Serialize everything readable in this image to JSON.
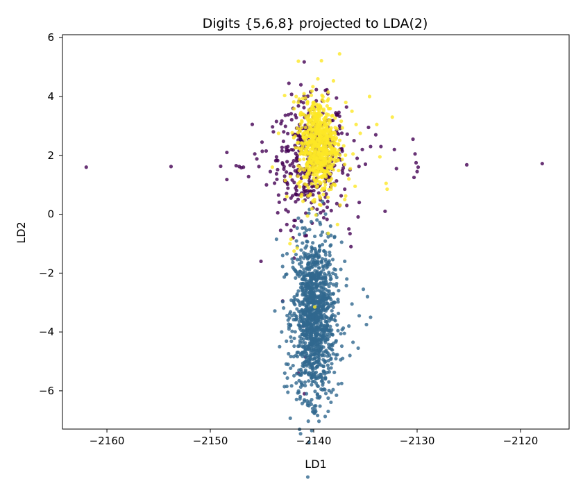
{
  "chart_data": {
    "type": "scatter",
    "title": "Digits {5,6,8} projected to LDA(2)",
    "xlabel": "LD1",
    "ylabel": "LD2",
    "xlim": [
      -2164.3,
      -2115.3
    ],
    "ylim": [
      -7.3,
      6.1
    ],
    "xticks": [
      {
        "v": -2160,
        "label": "−2160"
      },
      {
        "v": -2150,
        "label": "−2150"
      },
      {
        "v": -2140,
        "label": "−2140"
      },
      {
        "v": -2130,
        "label": "−2130"
      },
      {
        "v": -2120,
        "label": "−2120"
      }
    ],
    "yticks": [
      {
        "v": 6,
        "label": "6"
      },
      {
        "v": 4,
        "label": "4"
      },
      {
        "v": 2,
        "label": "2"
      },
      {
        "v": 0,
        "label": "0"
      },
      {
        "v": -2,
        "label": "−2"
      },
      {
        "v": -4,
        "label": "−4"
      },
      {
        "v": -6,
        "label": "−6"
      }
    ],
    "grid": false,
    "legend": "none",
    "series": [
      {
        "color": "#440154",
        "points": [
          [
            -2162.0,
            1.6
          ],
          [
            -2153.8,
            1.62
          ],
          [
            -2149.0,
            1.63
          ],
          [
            -2148.4,
            2.1
          ],
          [
            -2148.4,
            1.18
          ],
          [
            -2147.5,
            1.65
          ],
          [
            -2147.2,
            1.62
          ],
          [
            -2147.0,
            1.58
          ],
          [
            -2146.8,
            1.6
          ],
          [
            -2146.3,
            1.28
          ],
          [
            -2145.7,
            2.05
          ],
          [
            -2145.5,
            1.88
          ],
          [
            -2145.3,
            1.62
          ],
          [
            -2145.0,
            2.45
          ],
          [
            -2145.1,
            -1.6
          ],
          [
            -2144.6,
            2.15
          ],
          [
            -2144.2,
            1.45
          ],
          [
            -2143.9,
            2.8
          ],
          [
            -2143.6,
            1.95
          ],
          [
            -2143.4,
            0.65
          ],
          [
            -2143.2,
            -0.55
          ],
          [
            -2143.0,
            1.7
          ],
          [
            -2142.9,
            2.8
          ],
          [
            -2142.8,
            1.15
          ],
          [
            -2142.7,
            0.15
          ],
          [
            -2142.6,
            -0.35
          ],
          [
            -2142.5,
            2.3
          ],
          [
            -2142.6,
            2.2
          ],
          [
            -2142.4,
            4.45
          ],
          [
            -2142.2,
            -0.55
          ],
          [
            -2142.0,
            3.6
          ],
          [
            -2142.0,
            -0.8
          ],
          [
            -2143.0,
            -2.95
          ],
          [
            -2141.0,
            -3.8
          ],
          [
            -2141.5,
            -5.4
          ],
          [
            -2140.8,
            -4.85
          ],
          [
            -2140.9,
            -6.1
          ],
          [
            -2137.8,
            3.95
          ],
          [
            -2137.5,
            3.0
          ],
          [
            -2137.3,
            2.2
          ],
          [
            -2137.2,
            1.4
          ],
          [
            -2137.0,
            0.85
          ],
          [
            -2136.8,
            0.3
          ],
          [
            -2136.6,
            -0.5
          ],
          [
            -2136.4,
            -1.1
          ],
          [
            -2136.1,
            2.5
          ],
          [
            -2135.8,
            1.9
          ],
          [
            -2135.6,
            0.4
          ],
          [
            -2135.3,
            2.2
          ],
          [
            -2135.0,
            1.7
          ],
          [
            -2134.7,
            2.95
          ],
          [
            -2134.5,
            2.3
          ],
          [
            -2134.0,
            2.7
          ],
          [
            -2133.5,
            2.3
          ],
          [
            -2133.1,
            0.1
          ],
          [
            -2132.2,
            2.2
          ],
          [
            -2132.0,
            1.55
          ],
          [
            -2130.4,
            2.55
          ],
          [
            -2130.2,
            2.05
          ],
          [
            -2130.1,
            1.75
          ],
          [
            -2130.0,
            1.45
          ],
          [
            -2130.3,
            1.25
          ],
          [
            -2129.9,
            1.6
          ],
          [
            -2125.2,
            1.68
          ],
          [
            -2117.9,
            1.72
          ]
        ],
        "cluster": {
          "cx": -2140.2,
          "cy": 1.9,
          "sx": 1.65,
          "sy": 1.0,
          "n": 420
        }
      },
      {
        "color": "#31688e",
        "points": [
          [
            -2143.6,
            -0.85
          ],
          [
            -2143.0,
            -1.4
          ],
          [
            -2142.7,
            -2.05
          ],
          [
            -2137.3,
            -0.95
          ],
          [
            -2137.0,
            -1.6
          ],
          [
            -2136.8,
            -2.2
          ],
          [
            -2136.3,
            -3.05
          ],
          [
            -2136.6,
            -3.8
          ],
          [
            -2136.2,
            -4.35
          ],
          [
            -2135.2,
            -2.55
          ],
          [
            -2135.6,
            -3.45
          ],
          [
            -2134.9,
            -3.75
          ],
          [
            -2134.8,
            -2.8
          ],
          [
            -2134.5,
            -3.5
          ],
          [
            -2136.5,
            -4.8
          ],
          [
            -2135.7,
            -4.55
          ],
          [
            -2143.1,
            -4.0
          ],
          [
            -2143.3,
            -4.5
          ],
          [
            -2142.8,
            -5.4
          ],
          [
            -2142.6,
            -5.85
          ],
          [
            -2142.5,
            -6.05
          ],
          [
            -2141.3,
            -6.2
          ],
          [
            -2140.7,
            -6.1
          ],
          [
            -2140.2,
            -6.3
          ],
          [
            -2139.4,
            -6.2
          ],
          [
            -2138.6,
            -6.25
          ],
          [
            -2138.3,
            -6.05
          ],
          [
            -2139.8,
            -6.7
          ],
          [
            -2140.1,
            -6.6
          ],
          [
            -2138.6,
            -6.7
          ],
          [
            -2137.8,
            -6.15
          ],
          [
            -2137.3,
            -5.75
          ]
        ],
        "cluster": {
          "cx": -2140.0,
          "cy": -3.5,
          "sx": 1.0,
          "sy": 1.35,
          "n": 1200
        }
      },
      {
        "color": "#fde725",
        "points": [
          [
            -2137.5,
            5.45
          ],
          [
            -2139.6,
            4.6
          ],
          [
            -2141.7,
            4.0
          ],
          [
            -2140.8,
            3.95
          ],
          [
            -2138.6,
            4.15
          ],
          [
            -2136.3,
            3.5
          ],
          [
            -2134.6,
            4.0
          ],
          [
            -2133.9,
            3.05
          ],
          [
            -2133.6,
            1.95
          ],
          [
            -2133.0,
            1.05
          ],
          [
            -2132.9,
            0.85
          ],
          [
            -2132.4,
            3.3
          ],
          [
            -2135.5,
            2.75
          ],
          [
            -2135.9,
            3.05
          ],
          [
            -2136.0,
            0.95
          ],
          [
            -2136.2,
            2.05
          ],
          [
            -2143.4,
            2.75
          ],
          [
            -2144.0,
            1.6
          ],
          [
            -2142.6,
            0.6
          ],
          [
            -2142.2,
            -0.85
          ],
          [
            -2142.3,
            -1.0
          ],
          [
            -2141.6,
            -1.15
          ],
          [
            -2141.9,
            -1.25
          ],
          [
            -2139.9,
            -3.15
          ],
          [
            -2137.0,
            0.5
          ],
          [
            -2136.6,
            1.2
          ],
          [
            -2138.6,
            -0.65
          ],
          [
            -2137.7,
            -0.35
          ],
          [
            -2141.5,
            3.8
          ],
          [
            -2136.9,
            3.8
          ]
        ],
        "cluster": {
          "cx": -2139.6,
          "cy": 2.35,
          "sx": 0.95,
          "sy": 0.8,
          "n": 700
        }
      }
    ]
  }
}
